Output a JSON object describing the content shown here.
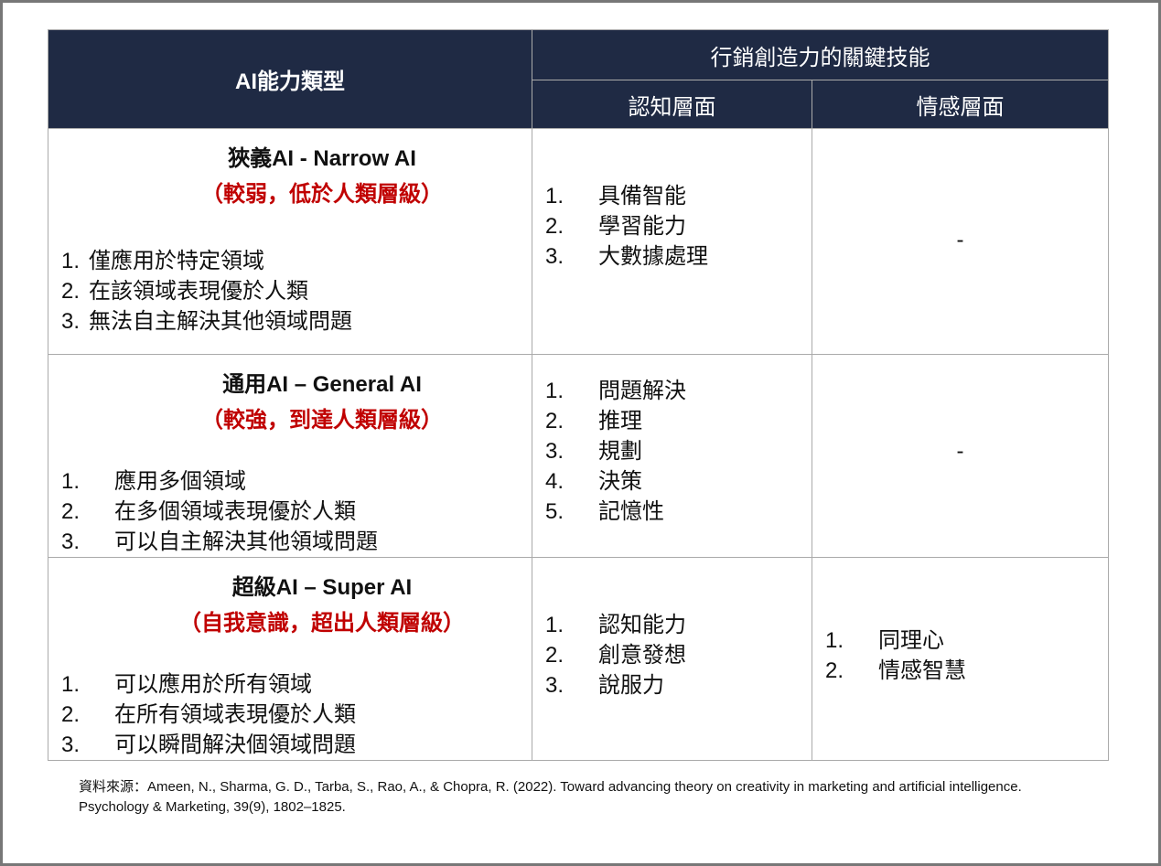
{
  "header": {
    "col1": "AI能力類型",
    "group": "行銷創造力的關鍵技能",
    "col2": "認知層面",
    "col3": "情感層面"
  },
  "rows": [
    {
      "name": "狹義AI - Narrow AI",
      "sub": "（較弱，低於人類層級）",
      "traits": [
        "僅應用於特定領域",
        "在該領域表現優於人類",
        "無法自主解決其他領域問題"
      ],
      "cognitive": [
        "具備智能",
        "學習能力",
        "大數據處理"
      ],
      "emotional": "-"
    },
    {
      "name": "通用AI – General AI",
      "sub": "（較強，到達人類層級）",
      "traits": [
        "應用多個領域",
        "在多個領域表現優於人類",
        "可以自主解決其他領域問題"
      ],
      "cognitive": [
        "問題解決",
        "推理",
        "規劃",
        "決策",
        "記憶性"
      ],
      "emotional": "-"
    },
    {
      "name": "超級AI – Super AI",
      "sub": "（自我意識，超出人類層級）",
      "traits": [
        "可以應用於所有領域",
        "在所有領域表現優於人類",
        "可以瞬間解決個領域問題"
      ],
      "cognitive": [
        "認知能力",
        "創意發想",
        "說服力"
      ],
      "emotional_list": [
        "同理心",
        "情感智慧"
      ]
    }
  ],
  "source": "資料來源：Ameen, N., Sharma, G. D., Tarba, S., Rao, A., & Chopra, R. (2022). Toward advancing theory on creativity in marketing and artificial intelligence. Psychology & Marketing, 39(9), 1802–1825.",
  "colors": {
    "header_bg": "#1f2a44",
    "accent_red": "#c00000"
  }
}
